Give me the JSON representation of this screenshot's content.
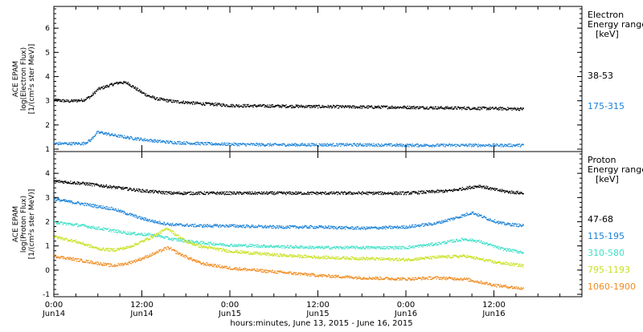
{
  "chart_data": {
    "type": "scatter",
    "xlabel": "hours:minutes, June 13, 2015 - June 16, 2015",
    "x_ticks": [
      {
        "top": "0:00",
        "bottom": "Jun14",
        "t": 0
      },
      {
        "top": "12:00",
        "bottom": "Jun14",
        "t": 12
      },
      {
        "top": "0:00",
        "bottom": "Jun15",
        "t": 24
      },
      {
        "top": "12:00",
        "bottom": "Jun15",
        "t": 36
      },
      {
        "top": "0:00",
        "bottom": "Jun16",
        "t": 48
      },
      {
        "top": "12:00",
        "bottom": "Jun16",
        "t": 60
      }
    ],
    "xlim": [
      0,
      72
    ],
    "panels": [
      {
        "id": "electron",
        "ylabel_lines": [
          "ACE EPAM",
          "log(Electron Flux)",
          "[1/(cm²s ster MeV)]"
        ],
        "ylim": [
          0.9,
          6.9
        ],
        "yticks": [
          1,
          2,
          3,
          4,
          5,
          6
        ],
        "legend_title": [
          "Electron",
          "Energy ranges",
          "[keV]"
        ],
        "series": [
          {
            "name": "38-53",
            "color": "#000000",
            "points": [
              [
                0,
                3.05
              ],
              [
                2,
                3.0
              ],
              [
                4,
                3.05
              ],
              [
                5,
                3.2
              ],
              [
                6,
                3.5
              ],
              [
                7,
                3.6
              ],
              [
                8,
                3.7
              ],
              [
                9,
                3.78
              ],
              [
                10,
                3.75
              ],
              [
                11,
                3.55
              ],
              [
                12,
                3.35
              ],
              [
                13,
                3.2
              ],
              [
                14,
                3.1
              ],
              [
                16,
                3.0
              ],
              [
                18,
                2.95
              ],
              [
                20,
                2.9
              ],
              [
                22,
                2.87
              ],
              [
                24,
                2.82
              ],
              [
                30,
                2.8
              ],
              [
                36,
                2.78
              ],
              [
                42,
                2.76
              ],
              [
                48,
                2.75
              ],
              [
                54,
                2.72
              ],
              [
                60,
                2.7
              ],
              [
                64,
                2.68
              ]
            ]
          },
          {
            "name": "175-315",
            "color": "#1a82d8",
            "points": [
              [
                0,
                1.25
              ],
              [
                4,
                1.25
              ],
              [
                5,
                1.4
              ],
              [
                5.8,
                1.7
              ],
              [
                6.5,
                1.7
              ],
              [
                8,
                1.6
              ],
              [
                10,
                1.5
              ],
              [
                12,
                1.42
              ],
              [
                14,
                1.35
              ],
              [
                16,
                1.3
              ],
              [
                20,
                1.25
              ],
              [
                24,
                1.22
              ],
              [
                30,
                1.2
              ],
              [
                36,
                1.2
              ],
              [
                42,
                1.2
              ],
              [
                48,
                1.18
              ],
              [
                56,
                1.18
              ],
              [
                64,
                1.18
              ]
            ]
          }
        ]
      },
      {
        "id": "proton",
        "ylabel_lines": [
          "ACE EPAM",
          "log(Proton Flux)",
          "[1/(cm²s ster MeV)]"
        ],
        "ylim": [
          -1.1,
          4.9
        ],
        "yticks": [
          -1,
          0,
          1,
          2,
          3,
          4
        ],
        "legend_title": [
          "Proton",
          "Energy ranges",
          "[keV]"
        ],
        "series": [
          {
            "name": "47-68",
            "color": "#000000",
            "points": [
              [
                0,
                3.7
              ],
              [
                4,
                3.6
              ],
              [
                8,
                3.45
              ],
              [
                12,
                3.3
              ],
              [
                16,
                3.2
              ],
              [
                20,
                3.2
              ],
              [
                24,
                3.2
              ],
              [
                32,
                3.2
              ],
              [
                40,
                3.2
              ],
              [
                48,
                3.2
              ],
              [
                54,
                3.3
              ],
              [
                57,
                3.45
              ],
              [
                58,
                3.5
              ],
              [
                60,
                3.35
              ],
              [
                62,
                3.25
              ],
              [
                64,
                3.2
              ]
            ]
          },
          {
            "name": "115-195",
            "color": "#1a82d8",
            "points": [
              [
                0,
                2.95
              ],
              [
                4,
                2.75
              ],
              [
                8,
                2.55
              ],
              [
                10,
                2.35
              ],
              [
                12,
                2.15
              ],
              [
                14,
                2.0
              ],
              [
                16,
                1.9
              ],
              [
                20,
                1.85
              ],
              [
                24,
                1.85
              ],
              [
                30,
                1.8
              ],
              [
                36,
                1.8
              ],
              [
                42,
                1.75
              ],
              [
                48,
                1.8
              ],
              [
                52,
                1.95
              ],
              [
                55,
                2.2
              ],
              [
                57,
                2.4
              ],
              [
                59,
                2.15
              ],
              [
                61,
                1.95
              ],
              [
                64,
                1.85
              ]
            ]
          },
          {
            "name": "310-580",
            "color": "#40e0c8",
            "points": [
              [
                0,
                2.0
              ],
              [
                4,
                1.85
              ],
              [
                8,
                1.65
              ],
              [
                10,
                1.55
              ],
              [
                12,
                1.5
              ],
              [
                14,
                1.45
              ],
              [
                16,
                1.3
              ],
              [
                20,
                1.15
              ],
              [
                24,
                1.05
              ],
              [
                30,
                1.0
              ],
              [
                36,
                0.95
              ],
              [
                42,
                0.95
              ],
              [
                48,
                0.95
              ],
              [
                52,
                1.1
              ],
              [
                56,
                1.3
              ],
              [
                58,
                1.2
              ],
              [
                61,
                0.9
              ],
              [
                64,
                0.75
              ]
            ]
          },
          {
            "name": "795-1193",
            "color": "#c8e020",
            "points": [
              [
                0,
                1.4
              ],
              [
                3,
                1.2
              ],
              [
                6,
                0.9
              ],
              [
                8,
                0.85
              ],
              [
                10,
                0.95
              ],
              [
                12,
                1.2
              ],
              [
                14,
                1.5
              ],
              [
                15.5,
                1.75
              ],
              [
                16.5,
                1.5
              ],
              [
                18,
                1.2
              ],
              [
                20,
                1.0
              ],
              [
                24,
                0.8
              ],
              [
                30,
                0.65
              ],
              [
                36,
                0.55
              ],
              [
                42,
                0.5
              ],
              [
                48,
                0.45
              ],
              [
                52,
                0.55
              ],
              [
                56,
                0.6
              ],
              [
                60,
                0.35
              ],
              [
                64,
                0.2
              ]
            ]
          },
          {
            "name": "1060-1900",
            "color": "#f08a1e",
            "points": [
              [
                0,
                0.6
              ],
              [
                4,
                0.4
              ],
              [
                6,
                0.3
              ],
              [
                8,
                0.2
              ],
              [
                10,
                0.3
              ],
              [
                12,
                0.5
              ],
              [
                14,
                0.75
              ],
              [
                15.5,
                0.95
              ],
              [
                17,
                0.7
              ],
              [
                20,
                0.3
              ],
              [
                24,
                0.1
              ],
              [
                30,
                -0.05
              ],
              [
                36,
                -0.2
              ],
              [
                42,
                -0.3
              ],
              [
                48,
                -0.35
              ],
              [
                52,
                -0.3
              ],
              [
                56,
                -0.35
              ],
              [
                60,
                -0.6
              ],
              [
                64,
                -0.75
              ]
            ]
          }
        ]
      }
    ]
  }
}
